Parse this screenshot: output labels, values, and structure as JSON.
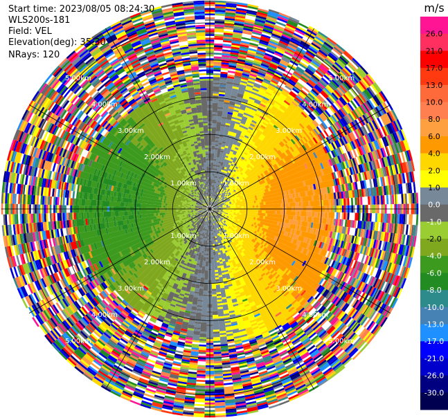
{
  "info": {
    "start_time": "Start time: 2023/08/05 08:24:30",
    "site": "WLS200s-181",
    "field": "Field: VEL",
    "elevation": "Elevation(deg): 35.30",
    "nrays": "NRays: 120"
  },
  "colorbar": {
    "unit": "m/s",
    "ticks": [
      "26.0",
      "21.0",
      "17.0",
      "13.0",
      "10.0",
      "8.0",
      "6.0",
      "4.0",
      "2.0",
      "1.0",
      "0.0",
      "-1.0",
      "-2.0",
      "-4.0",
      "-6.0",
      "-8.0",
      "-10.0",
      "-13.0",
      "-17.0",
      "-21.0",
      "-26.0",
      "-30.0"
    ],
    "colors": [
      "#ff1493",
      "#ff3060",
      "#ff0000",
      "#ff3a10",
      "#ff6a3a",
      "#ff7f50",
      "#ffa040",
      "#ff9900",
      "#ffd700",
      "#ffff00",
      "#778899",
      "#696969",
      "#9acd32",
      "#7fa81e",
      "#3c9a1e",
      "#228b22",
      "#2e8b8b",
      "#4682b4",
      "#1e90ff",
      "#0000ff",
      "#0000cd",
      "#000080",
      "#000050"
    ]
  },
  "chart_data": {
    "type": "ppi",
    "field": "VEL",
    "unit": "m/s",
    "nrays": 120,
    "ring_radii_km": [
      1,
      2,
      3,
      4,
      5
    ],
    "ring_labels": [
      "1.00km",
      "2.00km",
      "3.00km",
      "4.00km",
      "5.00km"
    ],
    "max_range_km": 5.6,
    "velocity_pattern": {
      "negative_sector_center_deg": 230,
      "positive_sector_center_deg": 95,
      "peak_abs_velocity": 6.0,
      "clean_range_km": 3.5
    }
  }
}
